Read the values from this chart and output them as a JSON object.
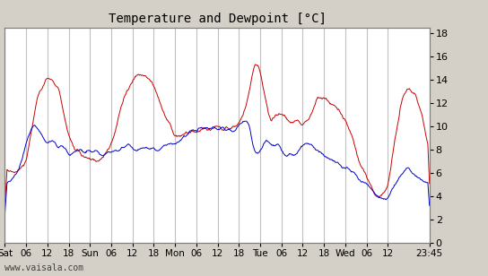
{
  "title": "Temperature and Dewpoint [°C]",
  "bg_color": "#d4d0c8",
  "plot_bg_color": "#ffffff",
  "grid_color": "#c0c0c0",
  "temp_color": "#cc0000",
  "dew_color": "#0000cc",
  "ylabel_right": true,
  "yticks": [
    0,
    2,
    4,
    6,
    8,
    10,
    12,
    14,
    16,
    18
  ],
  "ylim": [
    0,
    18.5
  ],
  "watermark": "www.vaisala.com",
  "xtick_labels": [
    "Sat",
    "06",
    "12",
    "18",
    "Sun",
    "06",
    "12",
    "18",
    "Mon",
    "06",
    "12",
    "18",
    "Tue",
    "06",
    "12",
    "18",
    "Wed",
    "06",
    "12",
    "23:45"
  ],
  "n_points": 600
}
